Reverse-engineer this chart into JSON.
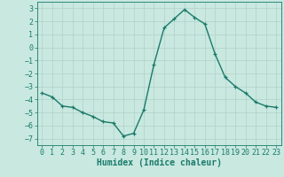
{
  "x": [
    0,
    1,
    2,
    3,
    4,
    5,
    6,
    7,
    8,
    9,
    10,
    11,
    12,
    13,
    14,
    15,
    16,
    17,
    18,
    19,
    20,
    21,
    22,
    23
  ],
  "y": [
    -3.5,
    -3.8,
    -4.5,
    -4.6,
    -5.0,
    -5.3,
    -5.7,
    -5.8,
    -6.8,
    -6.6,
    -4.8,
    -1.3,
    1.5,
    2.2,
    2.9,
    2.3,
    1.8,
    -0.5,
    -2.3,
    -3.0,
    -3.5,
    -4.2,
    -4.5,
    -4.6
  ],
  "color": "#1a7a6a",
  "bg_color": "#c8e8e0",
  "grid_color": "#b0d0c8",
  "xlabel": "Humidex (Indice chaleur)",
  "ylim": [
    -7.5,
    3.5
  ],
  "xlim": [
    -0.5,
    23.5
  ],
  "yticks": [
    -7,
    -6,
    -5,
    -4,
    -3,
    -2,
    -1,
    0,
    1,
    2,
    3
  ],
  "xticks": [
    0,
    1,
    2,
    3,
    4,
    5,
    6,
    7,
    8,
    9,
    10,
    11,
    12,
    13,
    14,
    15,
    16,
    17,
    18,
    19,
    20,
    21,
    22,
    23
  ],
  "marker": "+",
  "markersize": 3.5,
  "linewidth": 1.0,
  "xlabel_fontsize": 7,
  "tick_fontsize": 6
}
